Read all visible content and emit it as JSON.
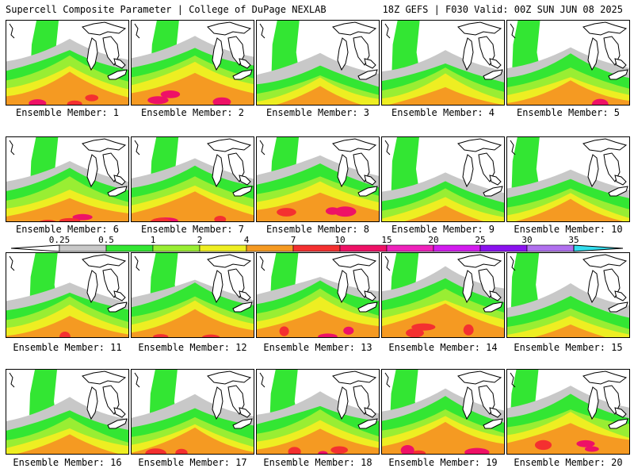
{
  "header": {
    "title": "Supercell Composite Parameter | College of DuPage NEXLAB",
    "run_info": "18Z GEFS | F030 Valid: 00Z SUN JUN 08 2025"
  },
  "panel_label_prefix": "Ensemble Member: ",
  "members": [
    "1",
    "2",
    "3",
    "4",
    "5",
    "6",
    "7",
    "8",
    "9",
    "10",
    "11",
    "12",
    "13",
    "14",
    "15",
    "16",
    "17",
    "18",
    "19",
    "20"
  ],
  "legend": {
    "ticks": [
      "0.25",
      "0.5",
      "1",
      "2",
      "4",
      "7",
      "10",
      "15",
      "20",
      "25",
      "30",
      "35"
    ],
    "colors": [
      "#c8c8c8",
      "#33e633",
      "#99ee33",
      "#eeee22",
      "#f59a22",
      "#f43030",
      "#ee1166",
      "#ee22bb",
      "#d21cee",
      "#8a12ee",
      "#b070ee",
      "#33ddee"
    ]
  }
}
